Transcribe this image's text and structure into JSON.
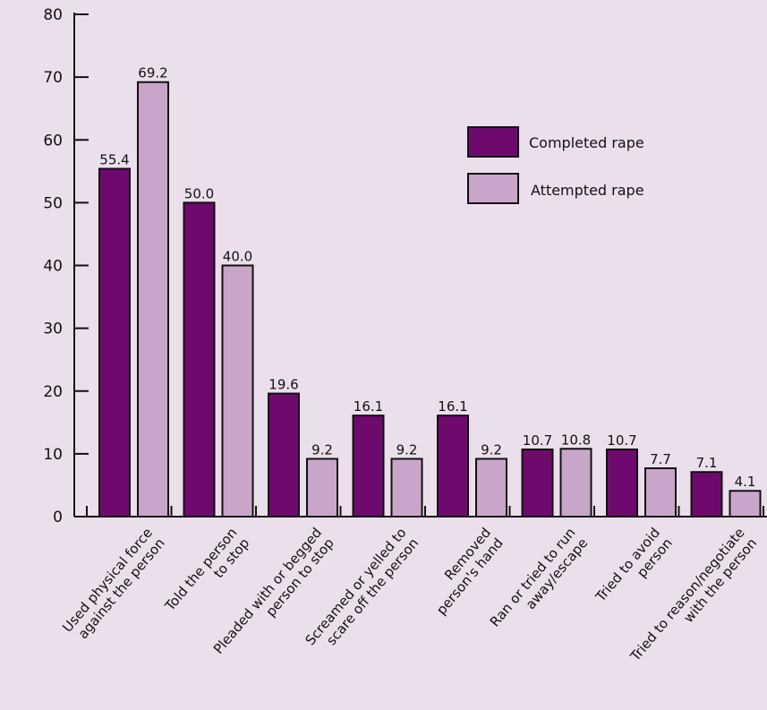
{
  "chart_data": {
    "type": "bar",
    "title": "",
    "xlabel": "",
    "ylabel": "",
    "ylim": [
      0,
      80
    ],
    "yticks": [
      0,
      10,
      20,
      30,
      40,
      50,
      60,
      70,
      80
    ],
    "grid": false,
    "legend_position": "top-right",
    "categories": [
      [
        "Used physical force",
        "against the person"
      ],
      [
        "Told the person",
        "to stop"
      ],
      [
        "Pleaded with or begged",
        "person to stop"
      ],
      [
        "Screamed or yelled to",
        "scare off the person"
      ],
      [
        "Removed",
        "person's hand"
      ],
      [
        "Ran or tried to run",
        "away/escape"
      ],
      [
        "Tried to avoid",
        "person"
      ],
      [
        "Tried to reason/negotiate",
        "with the person"
      ]
    ],
    "series": [
      {
        "name": "Completed rape",
        "color": "#6e0a6e",
        "values": [
          55.4,
          50.0,
          19.6,
          16.1,
          16.1,
          10.7,
          10.7,
          7.1
        ],
        "labels": [
          "55.4",
          "50.0",
          "19.6",
          "16.1",
          "16.1",
          "10.7",
          "10.7",
          "7.1"
        ]
      },
      {
        "name": "Attempted rape",
        "color": "#c9a6c9",
        "values": [
          69.2,
          40.0,
          9.2,
          9.2,
          9.2,
          10.8,
          7.7,
          4.1
        ],
        "labels": [
          "69.2",
          "40.0",
          "9.2",
          "9.2",
          "9.2",
          "10.8",
          "7.7",
          "4.1"
        ]
      }
    ]
  }
}
